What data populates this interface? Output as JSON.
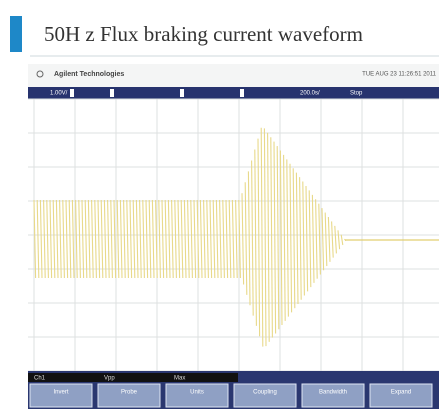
{
  "header": {
    "title": "50H z Flux braking current waveform"
  },
  "scope": {
    "brand": "Agilent Technologies",
    "timestamp": "TUE AUG 23 11:26:51 2011",
    "status_bar": [
      "1.00V/",
      "200.0s/",
      "Stop"
    ],
    "readout": [
      "Ch1",
      "Vpp",
      "Max"
    ],
    "softkeys": [
      "Invert",
      "Probe",
      "Units",
      "Coupling",
      "Bandwidth",
      "Expand"
    ]
  }
}
